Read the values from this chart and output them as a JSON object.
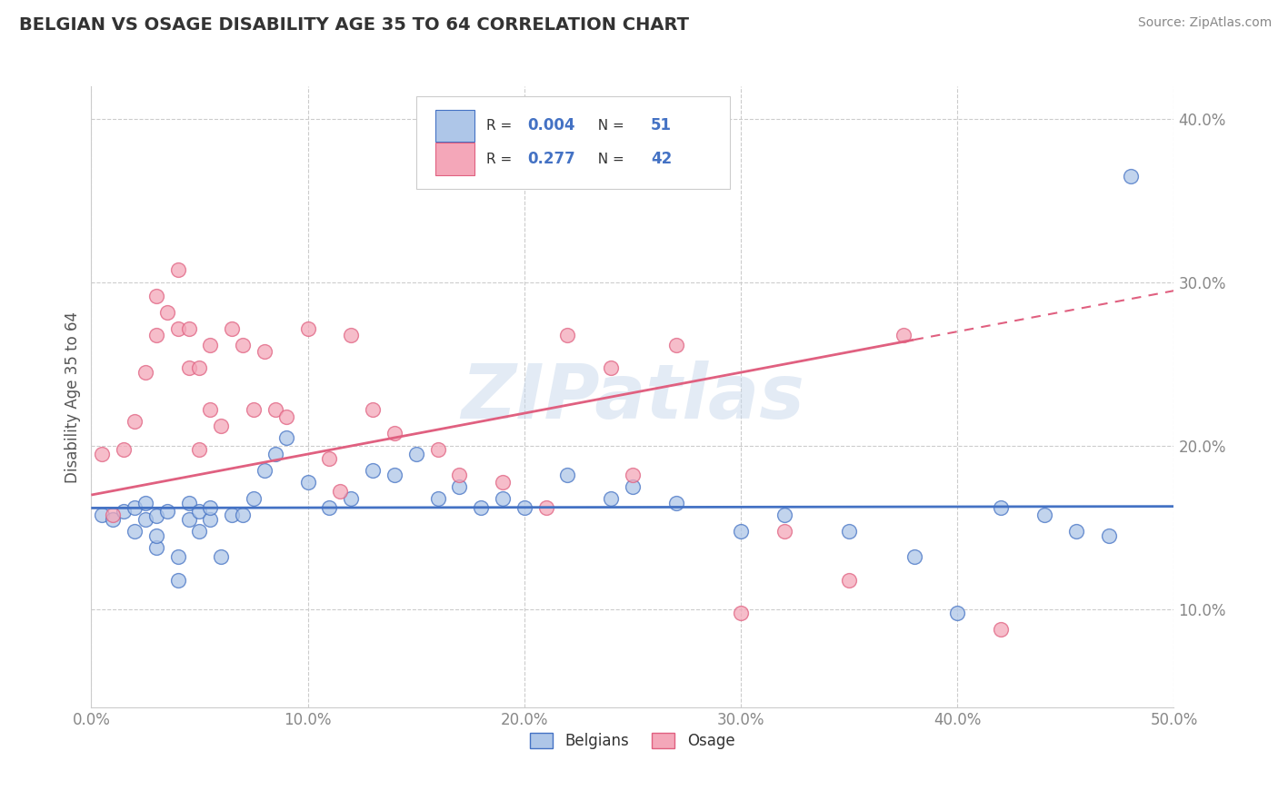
{
  "title": "BELGIAN VS OSAGE DISABILITY AGE 35 TO 64 CORRELATION CHART",
  "source": "Source: ZipAtlas.com",
  "ylabel": "Disability Age 35 to 64",
  "xlim": [
    0.0,
    0.5
  ],
  "ylim": [
    0.04,
    0.42
  ],
  "xticks": [
    0.0,
    0.1,
    0.2,
    0.3,
    0.4,
    0.5
  ],
  "xticklabels": [
    "0.0%",
    "10.0%",
    "20.0%",
    "30.0%",
    "40.0%",
    "50.0%"
  ],
  "yticks": [
    0.1,
    0.2,
    0.3,
    0.4
  ],
  "yticklabels": [
    "10.0%",
    "20.0%",
    "30.0%",
    "40.0%"
  ],
  "belgian_R": 0.004,
  "belgian_N": 51,
  "osage_R": 0.277,
  "osage_N": 42,
  "belgian_color": "#aec6e8",
  "osage_color": "#f4a7b9",
  "belgian_line_color": "#4472c4",
  "osage_line_color": "#e06080",
  "watermark": "ZIPatlas",
  "belgians_x": [
    0.005,
    0.01,
    0.015,
    0.02,
    0.02,
    0.025,
    0.025,
    0.03,
    0.03,
    0.03,
    0.035,
    0.04,
    0.04,
    0.045,
    0.045,
    0.05,
    0.05,
    0.055,
    0.055,
    0.06,
    0.065,
    0.07,
    0.075,
    0.08,
    0.085,
    0.09,
    0.1,
    0.11,
    0.12,
    0.13,
    0.14,
    0.15,
    0.16,
    0.17,
    0.18,
    0.19,
    0.2,
    0.22,
    0.24,
    0.25,
    0.27,
    0.3,
    0.32,
    0.35,
    0.38,
    0.4,
    0.42,
    0.44,
    0.455,
    0.47,
    0.48
  ],
  "belgians_y": [
    0.158,
    0.155,
    0.16,
    0.148,
    0.162,
    0.155,
    0.165,
    0.138,
    0.145,
    0.157,
    0.16,
    0.118,
    0.132,
    0.165,
    0.155,
    0.148,
    0.16,
    0.155,
    0.162,
    0.132,
    0.158,
    0.158,
    0.168,
    0.185,
    0.195,
    0.205,
    0.178,
    0.162,
    0.168,
    0.185,
    0.182,
    0.195,
    0.168,
    0.175,
    0.162,
    0.168,
    0.162,
    0.182,
    0.168,
    0.175,
    0.165,
    0.148,
    0.158,
    0.148,
    0.132,
    0.098,
    0.162,
    0.158,
    0.148,
    0.145,
    0.365
  ],
  "osage_x": [
    0.005,
    0.01,
    0.015,
    0.02,
    0.025,
    0.03,
    0.03,
    0.035,
    0.04,
    0.04,
    0.045,
    0.045,
    0.05,
    0.05,
    0.055,
    0.055,
    0.06,
    0.065,
    0.07,
    0.075,
    0.08,
    0.085,
    0.09,
    0.1,
    0.11,
    0.115,
    0.12,
    0.13,
    0.14,
    0.16,
    0.17,
    0.19,
    0.21,
    0.22,
    0.24,
    0.25,
    0.27,
    0.3,
    0.32,
    0.35,
    0.375,
    0.42
  ],
  "osage_y": [
    0.195,
    0.158,
    0.198,
    0.215,
    0.245,
    0.268,
    0.292,
    0.282,
    0.308,
    0.272,
    0.272,
    0.248,
    0.248,
    0.198,
    0.222,
    0.262,
    0.212,
    0.272,
    0.262,
    0.222,
    0.258,
    0.222,
    0.218,
    0.272,
    0.192,
    0.172,
    0.268,
    0.222,
    0.208,
    0.198,
    0.182,
    0.178,
    0.162,
    0.268,
    0.248,
    0.182,
    0.262,
    0.098,
    0.148,
    0.118,
    0.268,
    0.088
  ],
  "belgian_trend_x0": 0.0,
  "belgian_trend_y0": 0.162,
  "belgian_trend_x1": 0.5,
  "belgian_trend_y1": 0.163,
  "osage_trend_x0": 0.0,
  "osage_trend_y0": 0.17,
  "osage_trend_x1": 0.5,
  "osage_trend_y1": 0.295
}
